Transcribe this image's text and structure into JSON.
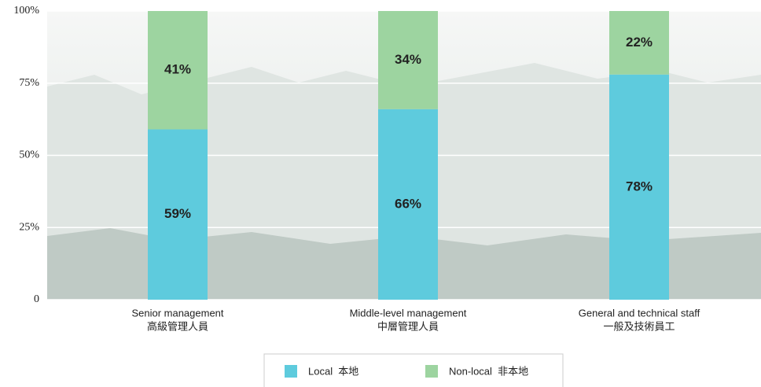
{
  "chart_data": {
    "type": "stacked-bar",
    "categories": [
      [
        "Senior management",
        "高級管理人員"
      ],
      [
        "Middle-level management",
        "中層管理人員"
      ],
      [
        "General and technical staff",
        "一般及技術員工"
      ]
    ],
    "series": [
      {
        "name": "Local  本地",
        "color": "#5ecbdd",
        "values": [
          59,
          66,
          78
        ],
        "value_labels": [
          "59%",
          "66%",
          "78%"
        ]
      },
      {
        "name": "Non-local  非本地",
        "color": "#9dd4a0",
        "values": [
          41,
          34,
          22
        ],
        "value_labels": [
          "41%",
          "34%",
          "22%"
        ]
      }
    ],
    "ylim": [
      0,
      100
    ],
    "yticks": [
      0,
      {
        "value": 25,
        "label": "25%"
      },
      {
        "value": 50,
        "label": "50%"
      },
      {
        "value": 75,
        "label": "75%"
      },
      {
        "value": 100,
        "label": "100%"
      }
    ],
    "grid": true
  }
}
